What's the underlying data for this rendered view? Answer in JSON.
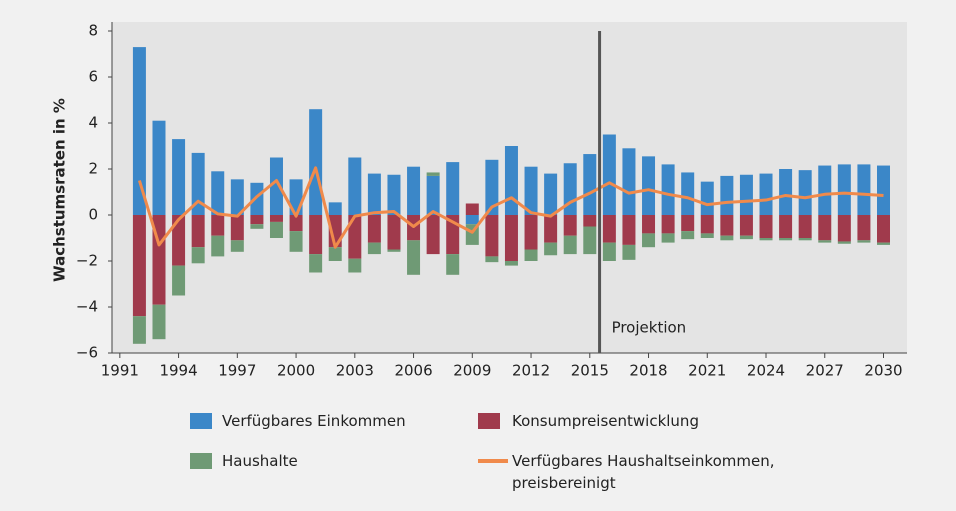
{
  "chart_data": {
    "type": "bar",
    "stacked": true,
    "y_label": "Wachstumsraten in %",
    "annotation": "Projektion",
    "projection_x": 2015.5,
    "x": [
      1992,
      1993,
      1994,
      1995,
      1996,
      1997,
      1998,
      1999,
      2000,
      2001,
      2002,
      2003,
      2004,
      2005,
      2006,
      2007,
      2008,
      2009,
      2010,
      2011,
      2012,
      2013,
      2014,
      2015,
      2016,
      2017,
      2018,
      2019,
      2020,
      2021,
      2022,
      2023,
      2024,
      2025,
      2026,
      2027,
      2028,
      2029,
      2030
    ],
    "xlim": [
      1990.6,
      2031.2
    ],
    "xticks": [
      1991,
      1994,
      1997,
      2000,
      2003,
      2006,
      2009,
      2012,
      2015,
      2018,
      2021,
      2024,
      2027,
      2030
    ],
    "ylim": [
      -6,
      8
    ],
    "yticks": [
      {
        "value": -6,
        "label": "−6"
      },
      {
        "value": -4,
        "label": "−4"
      },
      {
        "value": -2,
        "label": "−2"
      },
      0,
      2,
      4,
      6,
      8
    ],
    "grid": false,
    "series": [
      {
        "name": "Verfügbares Einkommen",
        "type": "bar",
        "color": "#3b87c8",
        "values": [
          7.3,
          4.1,
          3.3,
          2.7,
          1.9,
          1.55,
          1.4,
          2.5,
          1.55,
          4.6,
          0.55,
          2.5,
          1.8,
          1.75,
          2.1,
          1.7,
          2.3,
          -0.4,
          2.4,
          3.0,
          2.1,
          1.8,
          2.25,
          2.65,
          3.5,
          2.9,
          2.55,
          2.2,
          1.85,
          1.45,
          1.7,
          1.75,
          1.8,
          2.0,
          1.95,
          2.15,
          2.2,
          2.2,
          2.15
        ]
      },
      {
        "name": "Konsumpreisentwicklung",
        "type": "bar",
        "color": "#a03a4c",
        "values": [
          -4.4,
          -3.9,
          -2.2,
          -1.4,
          -0.9,
          -1.1,
          -0.4,
          -0.3,
          -0.7,
          -1.7,
          -1.4,
          -1.9,
          -1.2,
          -1.5,
          -1.1,
          -1.7,
          -1.7,
          0.5,
          -1.8,
          -2.0,
          -1.5,
          -1.2,
          -0.9,
          -0.5,
          -1.2,
          -1.3,
          -0.8,
          -0.8,
          -0.7,
          -0.8,
          -0.9,
          -0.9,
          -1.0,
          -1.0,
          -1.0,
          -1.1,
          -1.15,
          -1.1,
          -1.2
        ]
      },
      {
        "name": "Haushalte",
        "type": "bar",
        "color": "#6f9a75",
        "values": [
          -1.2,
          -1.5,
          -1.3,
          -0.7,
          -0.9,
          -0.5,
          -0.2,
          -0.7,
          -0.9,
          -0.8,
          -0.6,
          -0.6,
          -0.5,
          -0.1,
          -1.5,
          0.15,
          -0.9,
          -0.9,
          -0.25,
          -0.2,
          -0.5,
          -0.55,
          -0.8,
          -1.2,
          -0.8,
          -0.65,
          -0.6,
          -0.4,
          -0.35,
          -0.2,
          -0.2,
          -0.15,
          -0.1,
          -0.1,
          -0.1,
          -0.1,
          -0.1,
          -0.1,
          -0.1
        ]
      },
      {
        "name": "Verfügbares Haushaltseinkommen, preisbereinigt",
        "type": "line",
        "color": "#f08a4b",
        "values": [
          1.5,
          -1.3,
          -0.2,
          0.6,
          0.05,
          -0.05,
          0.8,
          1.5,
          -0.05,
          2.05,
          -1.4,
          -0.05,
          0.1,
          0.15,
          -0.5,
          0.15,
          -0.3,
          -0.75,
          0.35,
          0.75,
          0.1,
          -0.05,
          0.55,
          0.95,
          1.4,
          0.95,
          1.1,
          0.9,
          0.75,
          0.45,
          0.55,
          0.6,
          0.65,
          0.85,
          0.75,
          0.9,
          0.95,
          0.9,
          0.85
        ]
      }
    ]
  }
}
